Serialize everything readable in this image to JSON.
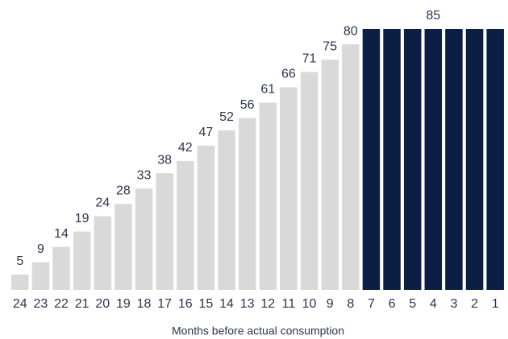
{
  "chart_data": {
    "type": "bar",
    "categories": [
      "24",
      "23",
      "22",
      "21",
      "20",
      "19",
      "18",
      "17",
      "16",
      "15",
      "14",
      "13",
      "12",
      "11",
      "10",
      "9",
      "8",
      "7",
      "6",
      "5",
      "4",
      "3",
      "2",
      "1"
    ],
    "values": [
      5,
      9,
      14,
      19,
      24,
      28,
      33,
      38,
      42,
      47,
      52,
      56,
      61,
      66,
      71,
      75,
      80,
      85,
      85,
      85,
      85,
      85,
      85,
      85
    ],
    "value_labels": [
      "5",
      "9",
      "14",
      "19",
      "24",
      "28",
      "33",
      "38",
      "42",
      "47",
      "52",
      "56",
      "61",
      "66",
      "71",
      "75",
      "80",
      null,
      null,
      null,
      "85",
      null,
      null,
      null
    ],
    "colors": [
      "#d9d9d9",
      "#d9d9d9",
      "#d9d9d9",
      "#d9d9d9",
      "#d9d9d9",
      "#d9d9d9",
      "#d9d9d9",
      "#d9d9d9",
      "#d9d9d9",
      "#d9d9d9",
      "#d9d9d9",
      "#d9d9d9",
      "#d9d9d9",
      "#d9d9d9",
      "#d9d9d9",
      "#d9d9d9",
      "#d9d9d9",
      "#0b1f45",
      "#0b1f45",
      "#0b1f45",
      "#0b1f45",
      "#0b1f45",
      "#0b1f45",
      "#0b1f45"
    ],
    "x_label": "Months before actual consumption",
    "ylim": [
      0,
      85
    ]
  }
}
